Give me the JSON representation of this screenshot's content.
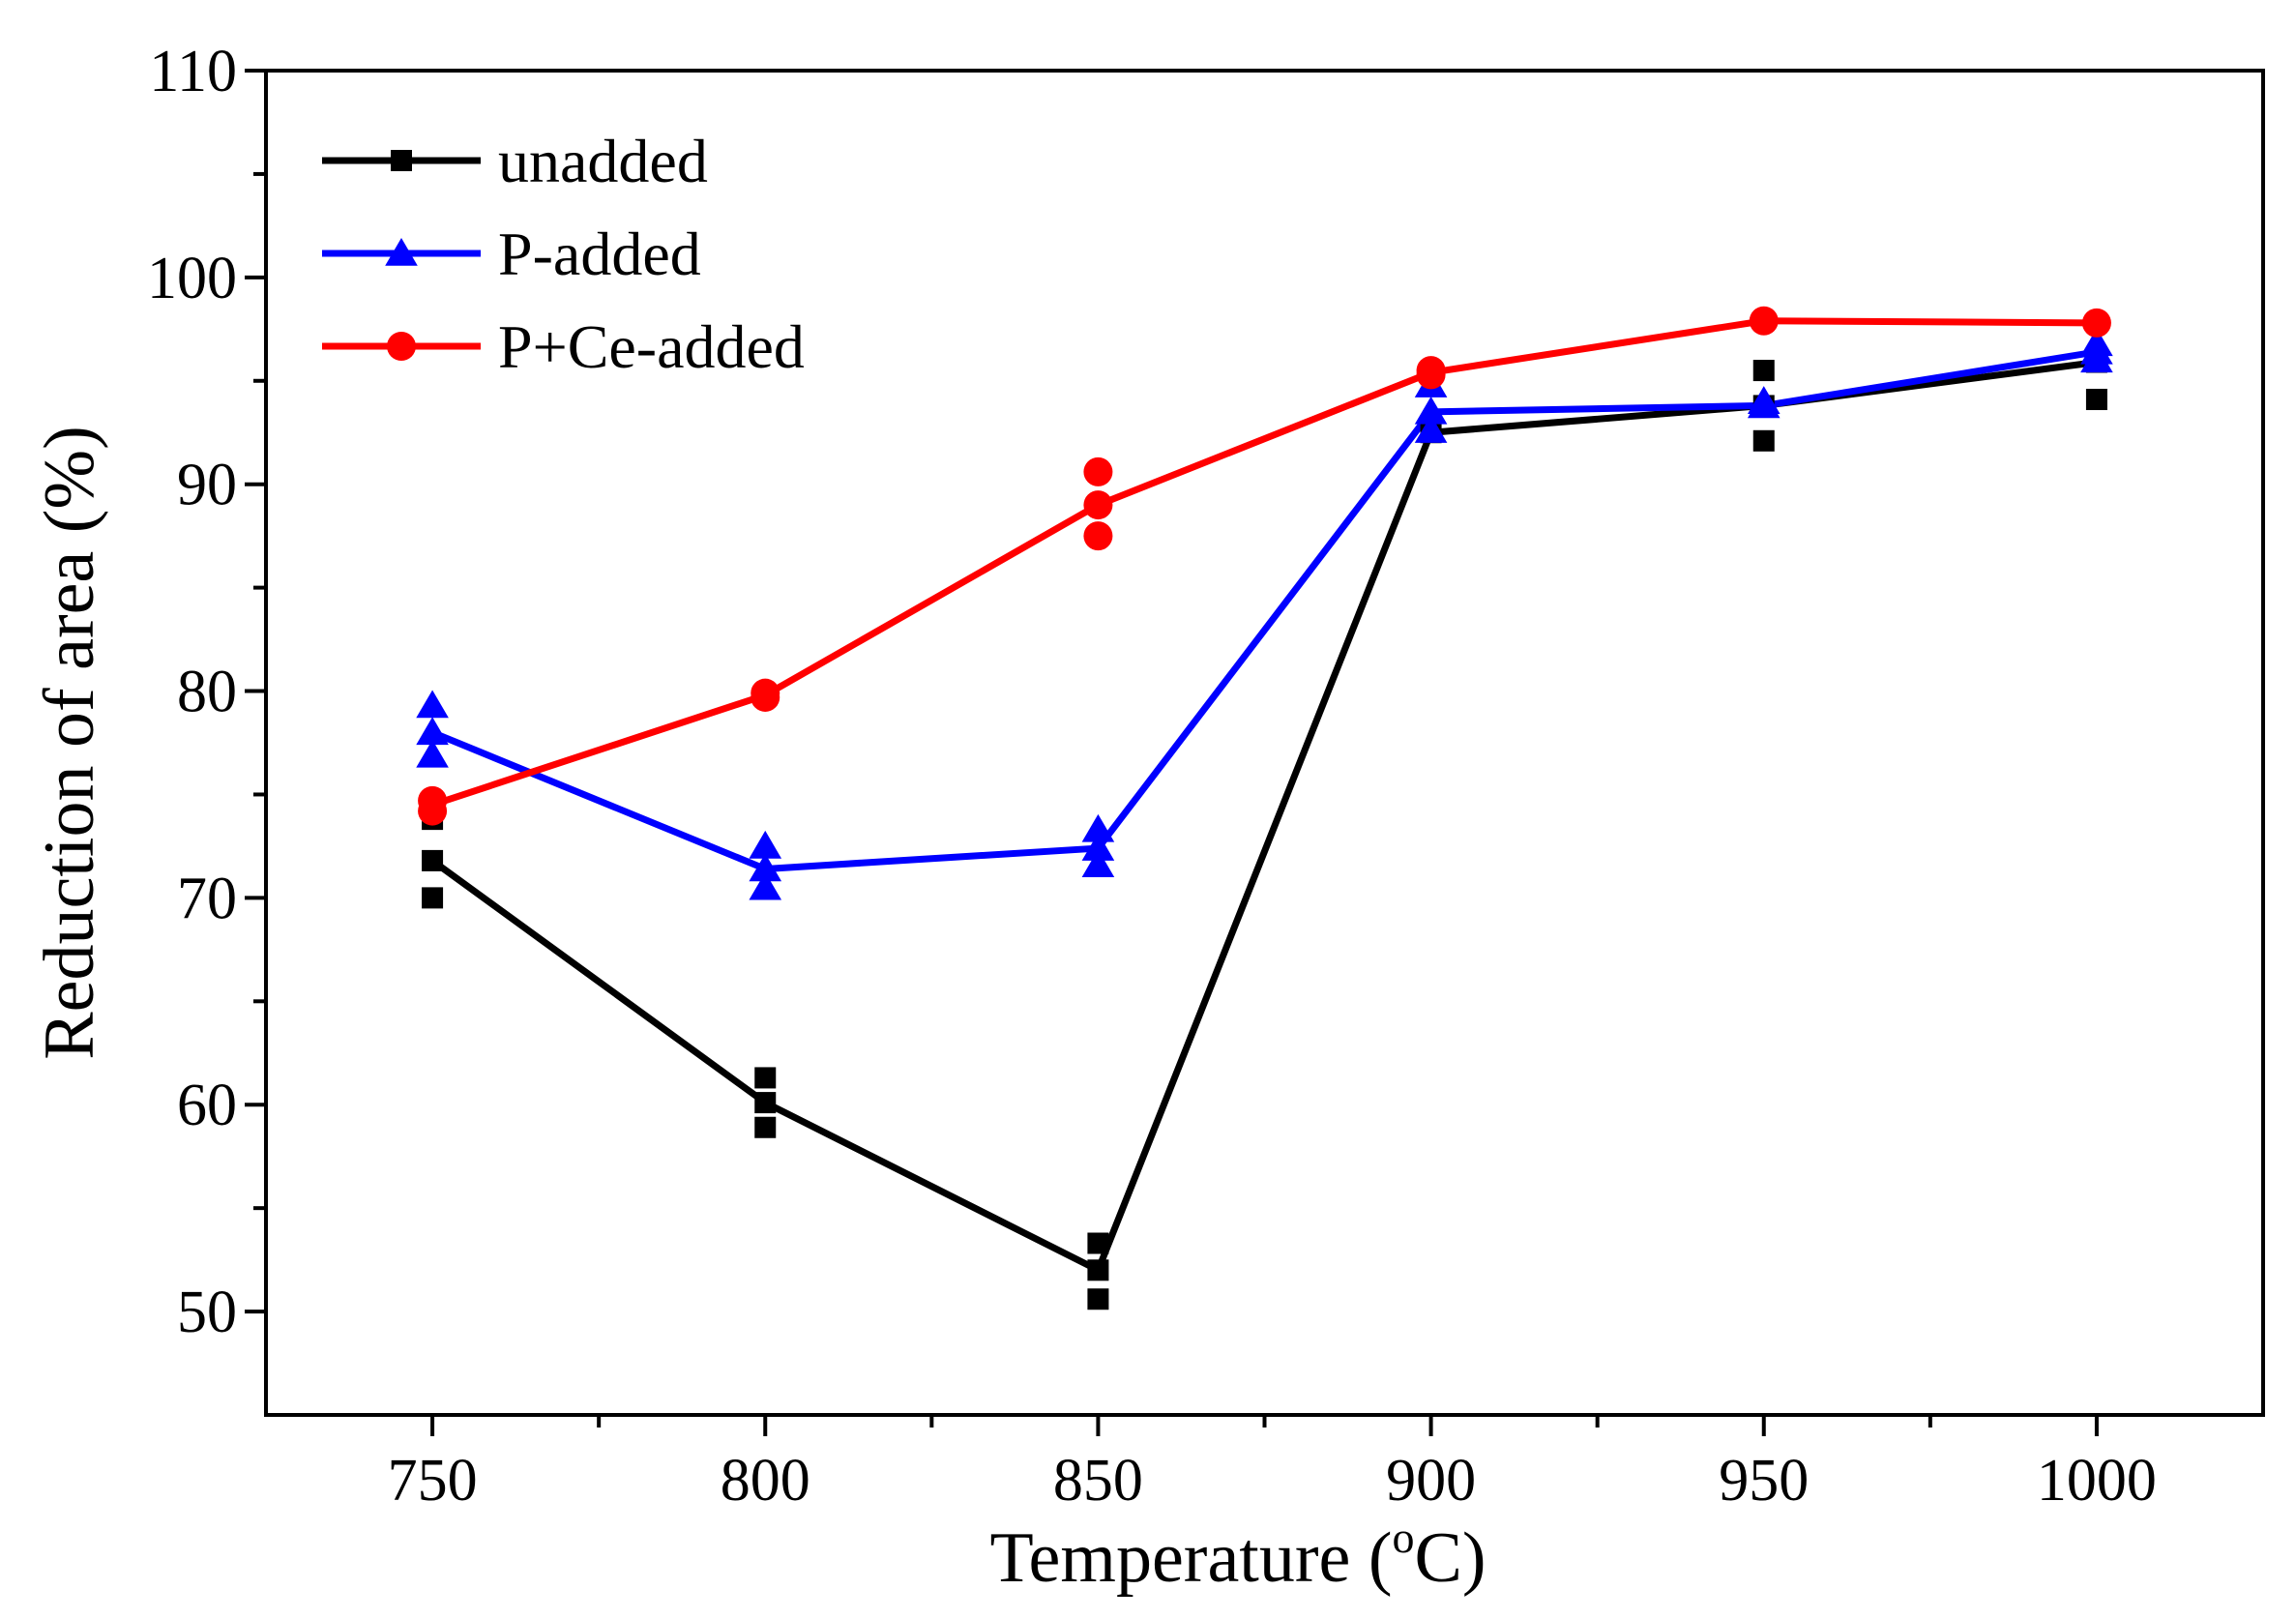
{
  "chart_data": {
    "type": "line",
    "title": "",
    "xlabel": "Temperature (",
    "xlabel_unit": "C)",
    "xlabel_degree": "o",
    "ylabel": "Reduction of area (%)",
    "xlim": [
      725,
      1025
    ],
    "ylim": [
      45,
      110
    ],
    "x_ticks": [
      750,
      800,
      850,
      900,
      950,
      1000
    ],
    "x_minor_ticks": [
      775,
      825,
      875,
      925,
      975
    ],
    "y_ticks": [
      50,
      60,
      70,
      80,
      90,
      100,
      110
    ],
    "y_minor_ticks": [
      55,
      65,
      75,
      85,
      95,
      105
    ],
    "legend_position": "top-left",
    "series": [
      {
        "name": "unadded",
        "color": "#000000",
        "marker": "square",
        "x": [
          750,
          800,
          850,
          900,
          950,
          1000
        ],
        "values": [
          71.8,
          60.1,
          52.0,
          92.5,
          93.8,
          95.9
        ],
        "scatter": [
          [
            750,
            73.8
          ],
          [
            750,
            71.8
          ],
          [
            750,
            70.0
          ],
          [
            800,
            61.3
          ],
          [
            800,
            60.1
          ],
          [
            800,
            58.9
          ],
          [
            850,
            53.3
          ],
          [
            850,
            52.0
          ],
          [
            850,
            50.6
          ],
          [
            900,
            92.5
          ],
          [
            950,
            95.5
          ],
          [
            950,
            93.8
          ],
          [
            950,
            92.1
          ],
          [
            1000,
            95.9
          ],
          [
            1000,
            94.1
          ]
        ]
      },
      {
        "name": "P-added",
        "color": "#0000ff",
        "marker": "triangle",
        "x": [
          750,
          800,
          850,
          900,
          950,
          1000
        ],
        "values": [
          78.0,
          71.4,
          72.4,
          93.5,
          93.8,
          96.4
        ],
        "scatter": [
          [
            750,
            79.3
          ],
          [
            750,
            78.0
          ],
          [
            750,
            76.9
          ],
          [
            800,
            72.5
          ],
          [
            800,
            71.4
          ],
          [
            800,
            70.5
          ],
          [
            850,
            73.3
          ],
          [
            850,
            72.4
          ],
          [
            850,
            71.6
          ],
          [
            900,
            94.8
          ],
          [
            900,
            93.5
          ],
          [
            900,
            92.6
          ],
          [
            950,
            94.0
          ],
          [
            950,
            93.8
          ],
          [
            1000,
            96.8
          ],
          [
            1000,
            96.4
          ],
          [
            1000,
            96.0
          ]
        ]
      },
      {
        "name": "P+Ce-added",
        "color": "#ff0000",
        "marker": "circle",
        "x": [
          750,
          800,
          850,
          900,
          950,
          1000
        ],
        "values": [
          74.5,
          79.8,
          89.0,
          95.4,
          97.9,
          97.8
        ],
        "scatter": [
          [
            750,
            74.7
          ],
          [
            750,
            74.2
          ],
          [
            800,
            79.9
          ],
          [
            800,
            79.7
          ],
          [
            850,
            90.6
          ],
          [
            850,
            89.0
          ],
          [
            850,
            87.5
          ],
          [
            900,
            95.5
          ],
          [
            900,
            95.3
          ],
          [
            950,
            97.9
          ],
          [
            1000,
            97.8
          ]
        ]
      }
    ]
  }
}
